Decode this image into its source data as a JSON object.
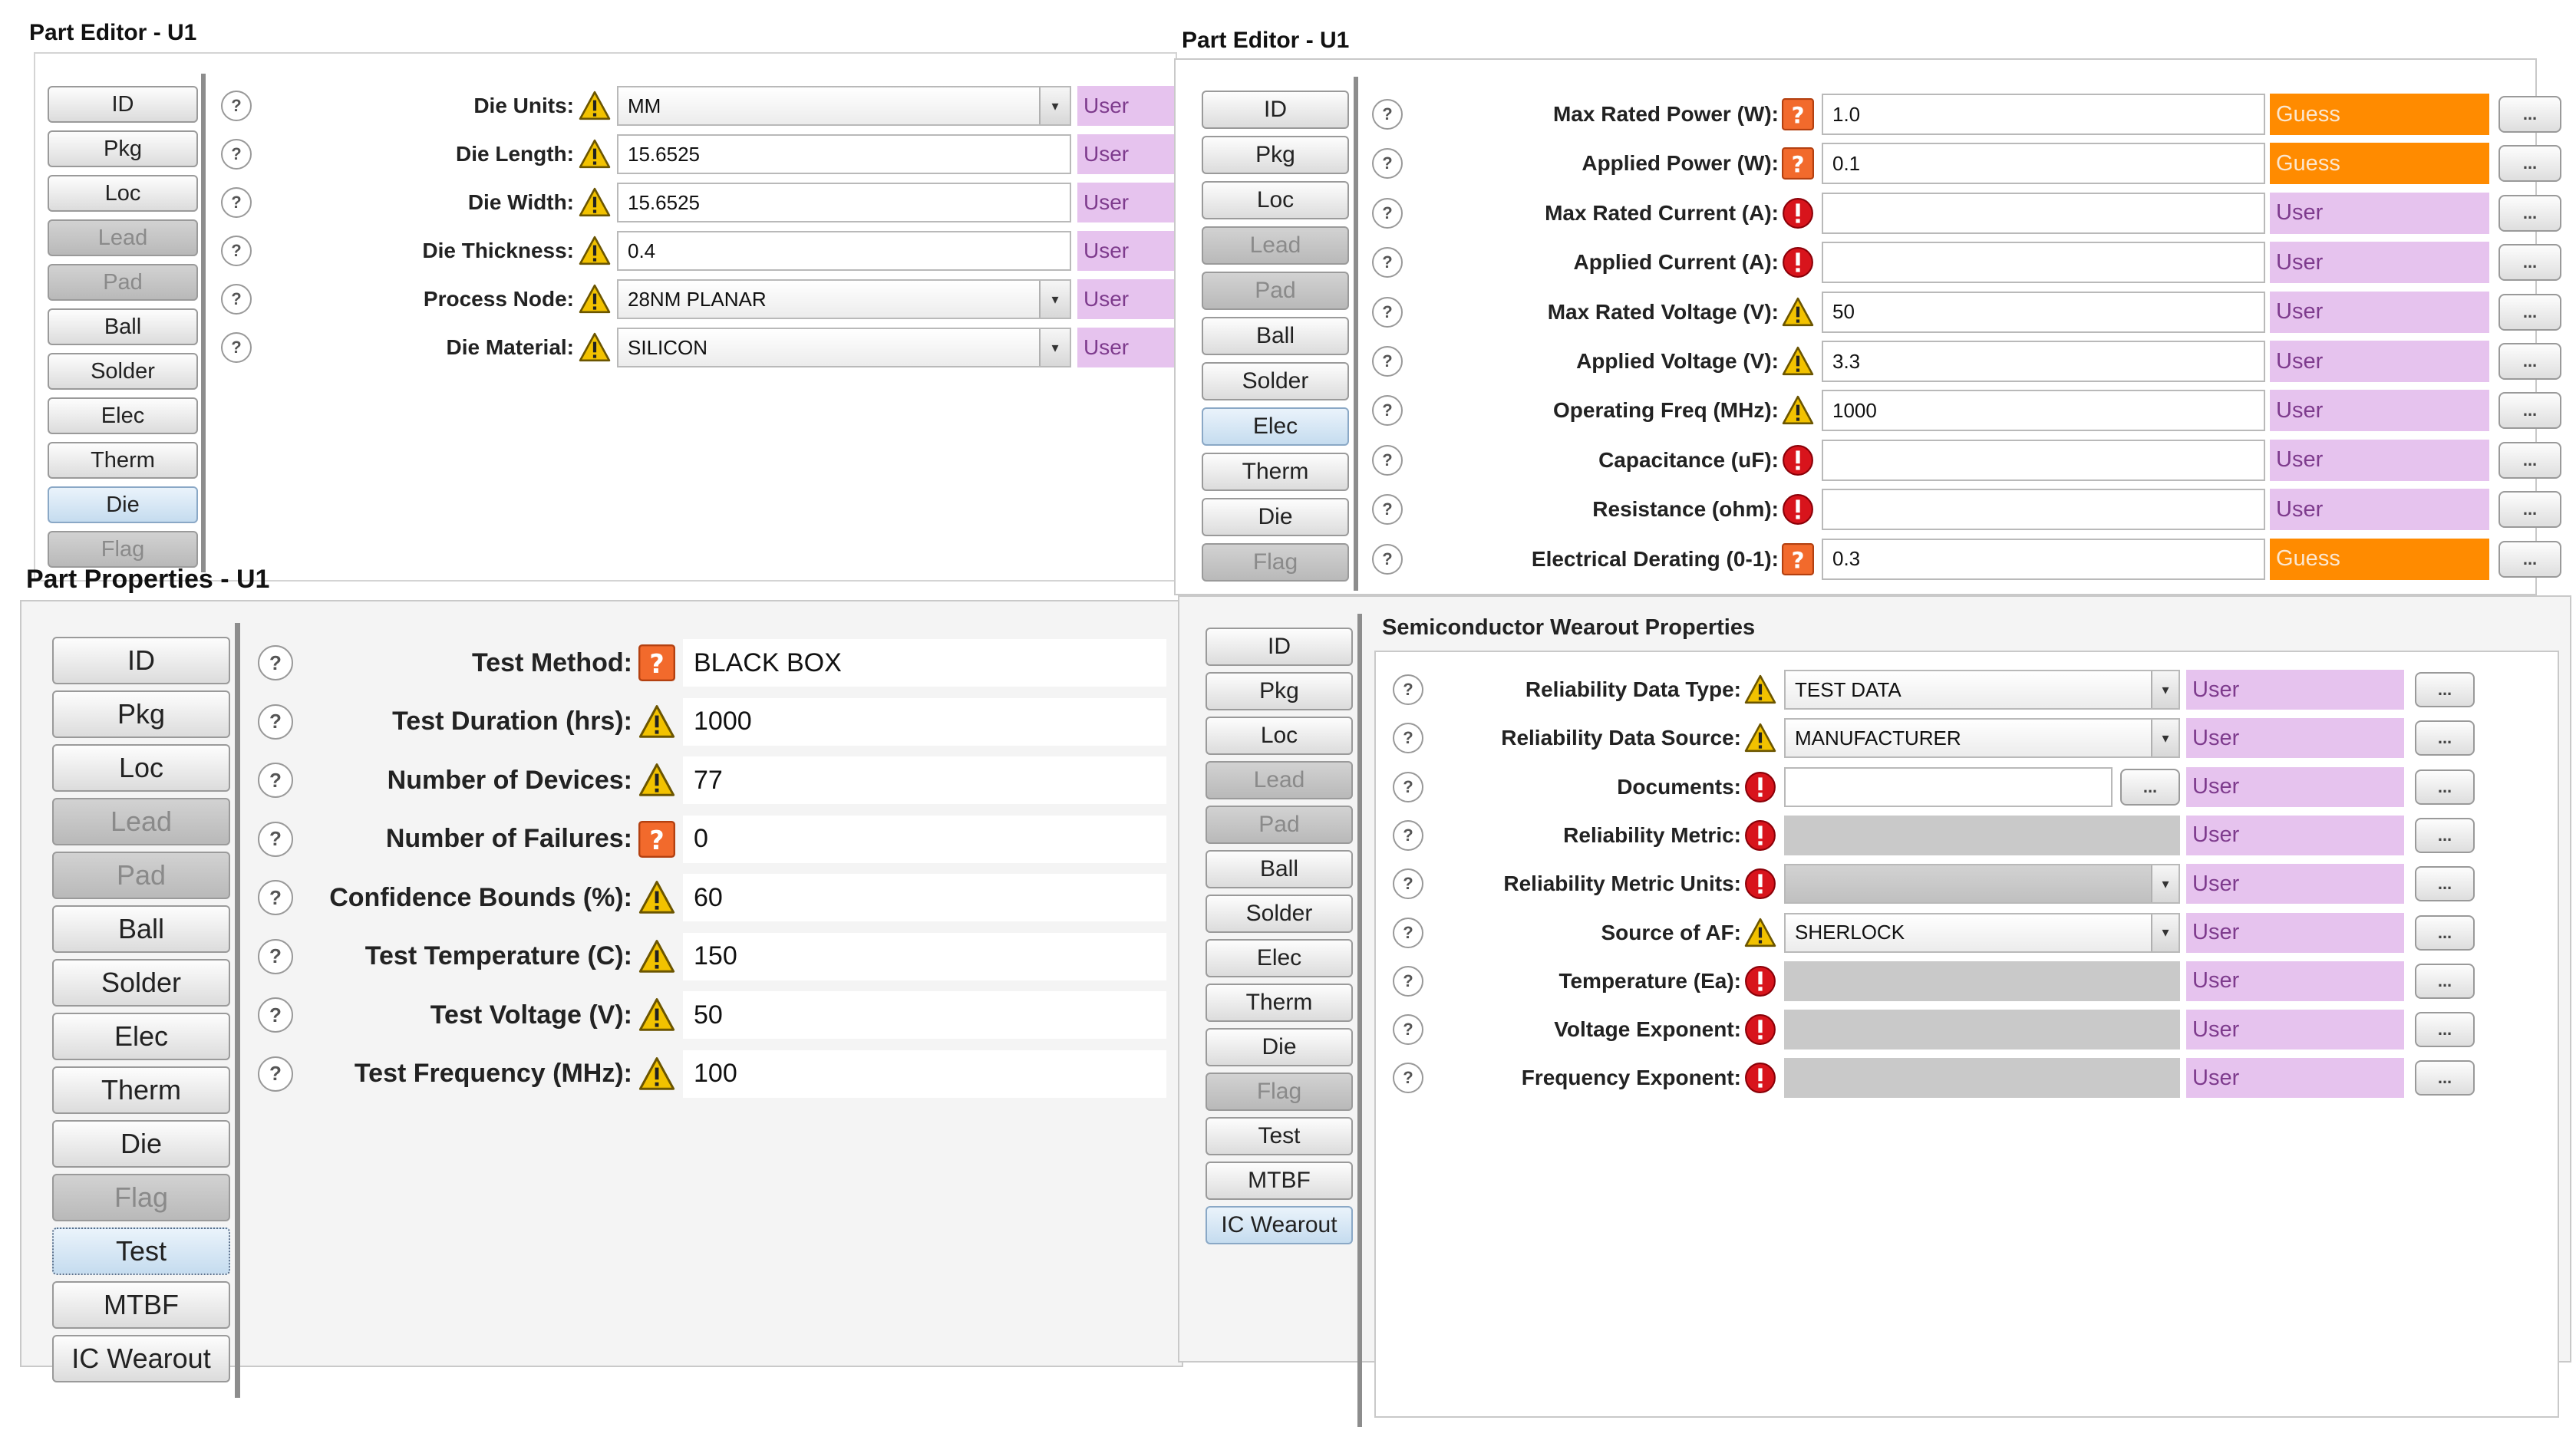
{
  "panel_tl": {
    "title": "Part Editor - U1",
    "tabs": [
      {
        "label": "ID",
        "state": "normal"
      },
      {
        "label": "Pkg",
        "state": "normal"
      },
      {
        "label": "Loc",
        "state": "normal"
      },
      {
        "label": "Lead",
        "state": "disabled"
      },
      {
        "label": "Pad",
        "state": "disabled"
      },
      {
        "label": "Ball",
        "state": "normal"
      },
      {
        "label": "Solder",
        "state": "normal"
      },
      {
        "label": "Elec",
        "state": "normal"
      },
      {
        "label": "Therm",
        "state": "normal"
      },
      {
        "label": "Die",
        "state": "active"
      },
      {
        "label": "Flag",
        "state": "disabled"
      }
    ],
    "fields": [
      {
        "label": "Die Units:",
        "icon": "warning",
        "value": "MM",
        "type": "select",
        "source": "User"
      },
      {
        "label": "Die Length:",
        "icon": "warning",
        "value": "15.6525",
        "type": "text",
        "source": "User"
      },
      {
        "label": "Die Width:",
        "icon": "warning",
        "value": "15.6525",
        "type": "text",
        "source": "User"
      },
      {
        "label": "Die Thickness:",
        "icon": "warning",
        "value": "0.4",
        "type": "text",
        "source": "User"
      },
      {
        "label": "Process Node:",
        "icon": "warning",
        "value": "28NM PLANAR",
        "type": "select",
        "source": "User"
      },
      {
        "label": "Die Material:",
        "icon": "warning",
        "value": "SILICON",
        "type": "select",
        "source": "User"
      }
    ]
  },
  "panel_tr": {
    "title": "Part Editor - U1",
    "tabs": [
      {
        "label": "ID",
        "state": "normal"
      },
      {
        "label": "Pkg",
        "state": "normal"
      },
      {
        "label": "Loc",
        "state": "normal"
      },
      {
        "label": "Lead",
        "state": "disabled"
      },
      {
        "label": "Pad",
        "state": "disabled"
      },
      {
        "label": "Ball",
        "state": "normal"
      },
      {
        "label": "Solder",
        "state": "normal"
      },
      {
        "label": "Elec",
        "state": "active"
      },
      {
        "label": "Therm",
        "state": "normal"
      },
      {
        "label": "Die",
        "state": "normal"
      },
      {
        "label": "Flag",
        "state": "disabled"
      }
    ],
    "fields": [
      {
        "label": "Max Rated Power (W):",
        "icon": "question",
        "value": "1.0",
        "type": "text",
        "source": "Guess"
      },
      {
        "label": "Applied Power (W):",
        "icon": "question",
        "value": "0.1",
        "type": "text",
        "source": "Guess"
      },
      {
        "label": "Max Rated Current (A):",
        "icon": "error",
        "value": "",
        "type": "text",
        "source": "User"
      },
      {
        "label": "Applied Current (A):",
        "icon": "error",
        "value": "",
        "type": "text",
        "source": "User"
      },
      {
        "label": "Max Rated Voltage (V):",
        "icon": "warning",
        "value": "50",
        "type": "text",
        "source": "User"
      },
      {
        "label": "Applied Voltage (V):",
        "icon": "warning",
        "value": "3.3",
        "type": "text",
        "source": "User"
      },
      {
        "label": "Operating Freq (MHz):",
        "icon": "warning",
        "value": "1000",
        "type": "text",
        "source": "User"
      },
      {
        "label": "Capacitance (uF):",
        "icon": "error",
        "value": "",
        "type": "text",
        "source": "User"
      },
      {
        "label": "Resistance (ohm):",
        "icon": "error",
        "value": "",
        "type": "text",
        "source": "User"
      },
      {
        "label": "Electrical Derating (0-1):",
        "icon": "question",
        "value": "0.3",
        "type": "text",
        "source": "Guess"
      }
    ],
    "more_label": "..."
  },
  "panel_bl": {
    "title": "Part Properties - U1",
    "tabs": [
      {
        "label": "ID",
        "state": "normal"
      },
      {
        "label": "Pkg",
        "state": "normal"
      },
      {
        "label": "Loc",
        "state": "normal"
      },
      {
        "label": "Lead",
        "state": "disabled"
      },
      {
        "label": "Pad",
        "state": "disabled"
      },
      {
        "label": "Ball",
        "state": "normal"
      },
      {
        "label": "Solder",
        "state": "normal"
      },
      {
        "label": "Elec",
        "state": "normal"
      },
      {
        "label": "Therm",
        "state": "normal"
      },
      {
        "label": "Die",
        "state": "normal"
      },
      {
        "label": "Flag",
        "state": "disabled"
      },
      {
        "label": "Test",
        "state": "test-active"
      },
      {
        "label": "MTBF",
        "state": "normal"
      },
      {
        "label": "IC Wearout",
        "state": "normal"
      }
    ],
    "fields": [
      {
        "label": "Test Method:",
        "icon": "question",
        "value": "BLACK BOX"
      },
      {
        "label": "Test Duration (hrs):",
        "icon": "warning",
        "value": "1000"
      },
      {
        "label": "Number of Devices:",
        "icon": "warning",
        "value": "77"
      },
      {
        "label": "Number of Failures:",
        "icon": "question",
        "value": "0"
      },
      {
        "label": "Confidence Bounds (%):",
        "icon": "warning",
        "value": "60"
      },
      {
        "label": "Test Temperature (C):",
        "icon": "warning",
        "value": "150"
      },
      {
        "label": "Test Voltage (V):",
        "icon": "warning",
        "value": "50"
      },
      {
        "label": "Test Frequency (MHz):",
        "icon": "warning",
        "value": "100"
      }
    ]
  },
  "panel_br": {
    "section_title": "Semiconductor Wearout Properties",
    "tabs": [
      {
        "label": "ID",
        "state": "normal"
      },
      {
        "label": "Pkg",
        "state": "normal"
      },
      {
        "label": "Loc",
        "state": "normal"
      },
      {
        "label": "Lead",
        "state": "disabled"
      },
      {
        "label": "Pad",
        "state": "disabled"
      },
      {
        "label": "Ball",
        "state": "normal"
      },
      {
        "label": "Solder",
        "state": "normal"
      },
      {
        "label": "Elec",
        "state": "normal"
      },
      {
        "label": "Therm",
        "state": "normal"
      },
      {
        "label": "Die",
        "state": "normal"
      },
      {
        "label": "Flag",
        "state": "disabled"
      },
      {
        "label": "Test",
        "state": "normal"
      },
      {
        "label": "MTBF",
        "state": "normal"
      },
      {
        "label": "IC Wearout",
        "state": "active"
      }
    ],
    "fields": [
      {
        "label": "Reliability Data Type:",
        "icon": "warning",
        "value": "TEST DATA",
        "type": "select",
        "source": "User"
      },
      {
        "label": "Reliability Data Source:",
        "icon": "warning",
        "value": "MANUFACTURER",
        "type": "select",
        "source": "User"
      },
      {
        "label": "Documents:",
        "icon": "error",
        "value": "",
        "type": "doc",
        "source": "User"
      },
      {
        "label": "Reliability Metric:",
        "icon": "error",
        "value": "",
        "type": "gray",
        "source": "User"
      },
      {
        "label": "Reliability Metric Units:",
        "icon": "error",
        "value": "",
        "type": "graysel",
        "source": "User"
      },
      {
        "label": "Source of AF:",
        "icon": "warning",
        "value": "SHERLOCK",
        "type": "select",
        "source": "User"
      },
      {
        "label": "Temperature (Ea):",
        "icon": "error",
        "value": "",
        "type": "gray",
        "source": "User"
      },
      {
        "label": "Voltage Exponent:",
        "icon": "error",
        "value": "",
        "type": "gray",
        "source": "User"
      },
      {
        "label": "Frequency Exponent:",
        "icon": "error",
        "value": "",
        "type": "gray",
        "source": "User"
      }
    ],
    "more_label": "..."
  },
  "icons": {
    "help": "help-icon",
    "warning": "warning-icon",
    "question": "question-icon",
    "error": "error-icon",
    "dropdown": "chevron-down-icon"
  },
  "colors": {
    "user_bg": "#e6c3ee",
    "user_text": "#7e3b8d",
    "guess_bg": "#ff8b00",
    "warning": "#f2c200",
    "error": "#d8141c",
    "question": "#f26a2c",
    "active_tab": "#c5dcef",
    "disabled_tab": "#bfbfbf"
  }
}
